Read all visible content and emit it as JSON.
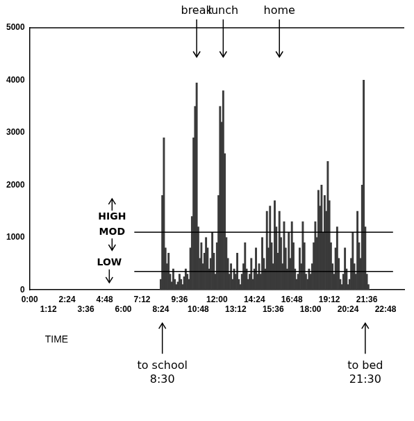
{
  "chart_data": {
    "type": "bar",
    "color": "#3a3a3a",
    "grid": false,
    "x_label": "TIME",
    "xlim": [
      0,
      1440
    ],
    "xticks": [
      {
        "value": 0,
        "label": "0:00"
      },
      {
        "value": 72,
        "label": "1:12"
      },
      {
        "value": 144,
        "label": "2:24"
      },
      {
        "value": 216,
        "label": "3:36"
      },
      {
        "value": 288,
        "label": "4:48"
      },
      {
        "value": 360,
        "label": "6:00"
      },
      {
        "value": 432,
        "label": "7:12"
      },
      {
        "value": 504,
        "label": "8:24"
      },
      {
        "value": 576,
        "label": "9:36"
      },
      {
        "value": 648,
        "label": "10:48"
      },
      {
        "value": 720,
        "label": "12:00"
      },
      {
        "value": 792,
        "label": "13:12"
      },
      {
        "value": 864,
        "label": "14:24"
      },
      {
        "value": 936,
        "label": "15:36"
      },
      {
        "value": 1008,
        "label": "16:48"
      },
      {
        "value": 1080,
        "label": "18:00"
      },
      {
        "value": 1152,
        "label": "19:12"
      },
      {
        "value": 1224,
        "label": "20:24"
      },
      {
        "value": 1296,
        "label": "21:36"
      },
      {
        "value": 1368,
        "label": "22:48"
      }
    ],
    "ylim": [
      0,
      5000
    ],
    "yticks": [
      0,
      1000,
      2000,
      3000,
      4000,
      5000
    ],
    "x": [
      504,
      510,
      516,
      522,
      528,
      534,
      540,
      546,
      552,
      558,
      564,
      570,
      576,
      582,
      588,
      594,
      600,
      606,
      612,
      618,
      624,
      630,
      636,
      642,
      648,
      654,
      660,
      666,
      672,
      678,
      684,
      690,
      696,
      702,
      708,
      714,
      720,
      726,
      732,
      738,
      744,
      750,
      756,
      762,
      768,
      774,
      780,
      786,
      792,
      798,
      804,
      810,
      816,
      822,
      828,
      834,
      840,
      846,
      852,
      858,
      864,
      870,
      876,
      882,
      888,
      894,
      900,
      906,
      912,
      918,
      924,
      930,
      936,
      942,
      948,
      954,
      960,
      966,
      972,
      978,
      984,
      990,
      996,
      1002,
      1008,
      1014,
      1020,
      1026,
      1032,
      1038,
      1044,
      1050,
      1056,
      1062,
      1068,
      1074,
      1080,
      1086,
      1092,
      1098,
      1104,
      1110,
      1116,
      1122,
      1128,
      1134,
      1140,
      1146,
      1152,
      1158,
      1164,
      1170,
      1176,
      1182,
      1188,
      1194,
      1200,
      1206,
      1212,
      1218,
      1224,
      1230,
      1236,
      1242,
      1248,
      1254,
      1260,
      1266,
      1272,
      1278,
      1284,
      1290,
      1296,
      1302,
      1308
    ],
    "values": [
      200,
      1800,
      2900,
      800,
      500,
      700,
      300,
      150,
      400,
      200,
      100,
      150,
      300,
      200,
      100,
      250,
      400,
      300,
      200,
      800,
      1400,
      2900,
      3500,
      3950,
      1200,
      600,
      900,
      500,
      700,
      1000,
      800,
      400,
      600,
      1100,
      700,
      300,
      900,
      1800,
      3500,
      3200,
      3800,
      2600,
      1000,
      600,
      300,
      500,
      200,
      400,
      300,
      700,
      200,
      100,
      300,
      500,
      900,
      400,
      200,
      300,
      600,
      200,
      400,
      800,
      300,
      500,
      300,
      1000,
      600,
      400,
      1500,
      800,
      1600,
      900,
      500,
      1700,
      1200,
      700,
      1500,
      1000,
      500,
      1300,
      800,
      400,
      1100,
      600,
      1300,
      900,
      400,
      200,
      300,
      800,
      500,
      1300,
      900,
      300,
      200,
      400,
      300,
      500,
      900,
      1300,
      1000,
      1900,
      1600,
      2000,
      1100,
      1800,
      1500,
      2450,
      1700,
      900,
      500,
      300,
      800,
      1200,
      600,
      200,
      100,
      300,
      800,
      400,
      100,
      200,
      600,
      1100,
      500,
      300,
      1500,
      900,
      600,
      2000,
      4000,
      1200,
      300,
      100,
      0
    ],
    "thresholds": [
      {
        "value": 1100,
        "labels": [
          "HIGH",
          "MOD"
        ]
      },
      {
        "value": 350,
        "labels": [
          "LOW"
        ]
      }
    ],
    "annotations": [
      {
        "lines": [
          "break"
        ],
        "x": 642,
        "position": "top"
      },
      {
        "lines": [
          "lunch"
        ],
        "x": 744,
        "position": "top"
      },
      {
        "lines": [
          "home"
        ],
        "x": 960,
        "position": "top"
      },
      {
        "lines": [
          "to school",
          "8:30"
        ],
        "x": 510,
        "position": "bottom"
      },
      {
        "lines": [
          "to bed",
          "21:30"
        ],
        "x": 1290,
        "position": "bottom"
      }
    ]
  }
}
